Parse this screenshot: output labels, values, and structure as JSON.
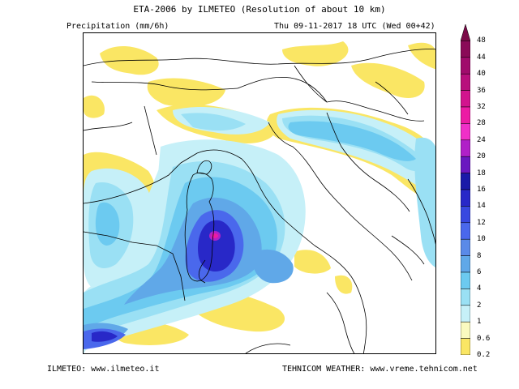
{
  "header": {
    "title": "ETA-2006 by ILMETEO (Resolution of about 10 km)",
    "variable": "Precipitation (mm/6h)",
    "valid_time": "Thu 09-11-2017 18 UTC (Wed 00+42)"
  },
  "footer": {
    "left": "ILMETEO: www.ilmeteo.it",
    "right": "TEHNICOM WEATHER: www.vreme.tehnicom.net"
  },
  "legend": {
    "levels": [
      {
        "label": "48",
        "color": "#7a0a48"
      },
      {
        "label": "44",
        "color": "#8a0a58"
      },
      {
        "label": "40",
        "color": "#a00c6c"
      },
      {
        "label": "36",
        "color": "#b8107c"
      },
      {
        "label": "32",
        "color": "#d2148e"
      },
      {
        "label": "28",
        "color": "#ec1ca4"
      },
      {
        "label": "24",
        "color": "#f030c8"
      },
      {
        "label": "20",
        "color": "#b020c8"
      },
      {
        "label": "18",
        "color": "#6a18c0"
      },
      {
        "label": "16",
        "color": "#1a1aa8"
      },
      {
        "label": "14",
        "color": "#2828c8"
      },
      {
        "label": "12",
        "color": "#3848e0"
      },
      {
        "label": "10",
        "color": "#4a68ec"
      },
      {
        "label": "8",
        "color": "#5a8ae8"
      },
      {
        "label": "6",
        "color": "#60a8e8"
      },
      {
        "label": "4",
        "color": "#6ccaf0"
      },
      {
        "label": "2",
        "color": "#9ae0f4"
      },
      {
        "label": "1",
        "color": "#c6f0f8"
      },
      {
        "label": "0.6",
        "color": "#fafac0"
      },
      {
        "label": "0.2",
        "color": "#fae664"
      }
    ]
  },
  "colors": {
    "land_border": "#000000",
    "light_yellow": "#fae664",
    "pale_yellow": "#fafac0",
    "pale_cyan": "#c6f0f8",
    "light_blue": "#9ae0f4",
    "sky_blue": "#6ccaf0",
    "mid_blue": "#60a8e8",
    "blue": "#4a68ec",
    "deep_blue": "#3848e0",
    "dark_blue": "#2828c8",
    "core": "#b8107c"
  }
}
